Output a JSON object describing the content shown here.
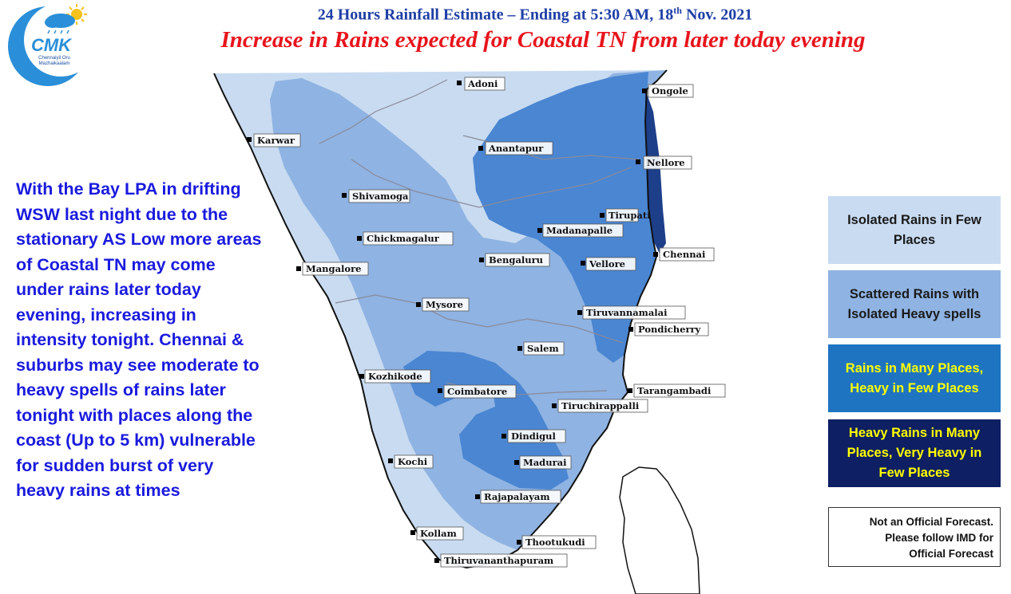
{
  "header": {
    "title_main": "24 Hours Rainfall Estimate – Ending at 5:30 AM, 18",
    "title_sup": "th",
    "title_tail": " Nov. 2021",
    "subtitle": "Increase in Rains expected for Coastal TN from later today evening"
  },
  "logo": {
    "letters": "CMK",
    "tagline1": "Chennaiyil Oru",
    "tagline2": "Mazhaikaalam"
  },
  "narrative": "With the Bay LPA in drifting WSW last night due to the stationary AS Low more areas of Coastal TN may come under rains later today evening, increasing in intensity tonight. Chennai & suburbs may see moderate to heavy spells of rains later tonight with places along the coast (Up to 5 km) vulnerable for sudden burst of very heavy rains at times",
  "legend": [
    {
      "label": "Isolated Rains in Few Places",
      "color": "#c8dbf1"
    },
    {
      "label": "Scattered Rains with Isolated Heavy spells",
      "color": "#8fb3e2"
    },
    {
      "label": "Rains in Many Places, Heavy in Few Places",
      "color": "#1f74c2"
    },
    {
      "label": "Heavy Rains in Many Places, Very Heavy in Few Places",
      "color": "#0e1f63"
    }
  ],
  "disclaimer": {
    "line1": "Not an Official Forecast.",
    "line2": "Please follow IMD for",
    "line3": "Official Forecast"
  },
  "cities": {
    "adoni": "Adoni",
    "ongole": "Ongole",
    "karwar": "Karwar",
    "anantapur": "Anantapur",
    "nellore": "Nellore",
    "shivamoga": "Shivamoga",
    "tirupati": "Tirupati",
    "madanapalle": "Madanapalle",
    "chickmagalur": "Chickmagalur",
    "chennai": "Chennai",
    "bengaluru": "Bengaluru",
    "vellore": "Vellore",
    "mangalore": "Mangalore",
    "mysore": "Mysore",
    "tiruvannamalai": "Tiruvannamalai",
    "pondicherry": "Pondicherry",
    "salem": "Salem",
    "kozhikode": "Kozhikode",
    "coimbatore": "Coimbatore",
    "tarangambadi": "Tarangambadi",
    "tiruchirappalli": "Tiruchirappalli",
    "dindigul": "Dindigul",
    "kochi": "Kochi",
    "madurai": "Madurai",
    "rajapalayam": "Rajapalayam",
    "kollam": "Kollam",
    "thootukudi": "Thootukudi",
    "thiruvananthapuram": "Thiruvananthapuram"
  }
}
